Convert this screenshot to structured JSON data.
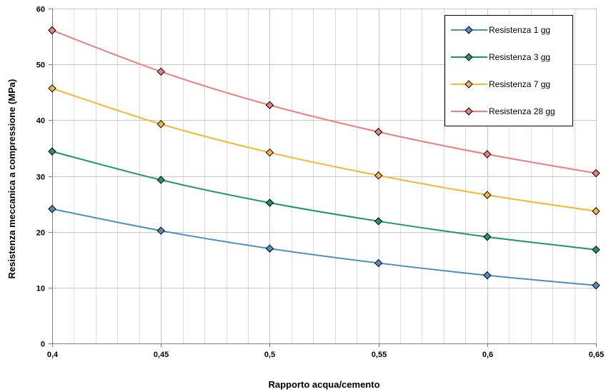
{
  "chart_data": {
    "type": "line",
    "xlabel": "Rapporto acqua/cemento",
    "ylabel": "Resistenza meccanica a compressione (MPa)",
    "x": [
      0.4,
      0.45,
      0.5,
      0.55,
      0.6,
      0.65
    ],
    "x_tick_labels": [
      "0,4",
      "0,45",
      "0,5",
      "0,55",
      "0,6",
      "0,65"
    ],
    "xlim": [
      0.4,
      0.65
    ],
    "ylim": [
      0,
      60
    ],
    "y_ticks": [
      0,
      10,
      20,
      30,
      40,
      50,
      60
    ],
    "grid": true,
    "legend_position": "top-right",
    "series": [
      {
        "name": "Resistenza 1 gg",
        "color": "#4f8fc0",
        "values": [
          24.1,
          20.2,
          17.0,
          14.4,
          12.2,
          10.4
        ]
      },
      {
        "name": "Resistenza 3 gg",
        "color": "#1a9a5e",
        "values": [
          34.4,
          29.3,
          25.2,
          21.9,
          19.1,
          16.8
        ]
      },
      {
        "name": "Resistenza 7 gg",
        "color": "#f5b82e",
        "values": [
          45.7,
          39.3,
          34.2,
          30.1,
          26.6,
          23.7
        ]
      },
      {
        "name": "Resistenza 28 gg",
        "color": "#ee7f7f",
        "values": [
          56.1,
          48.7,
          42.7,
          37.9,
          33.9,
          30.5
        ]
      }
    ]
  }
}
